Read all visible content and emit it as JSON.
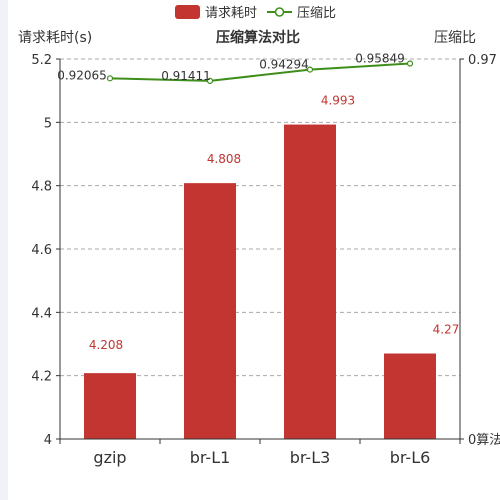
{
  "chart_data": {
    "type": "bar",
    "title": "压缩算法对比",
    "legend": {
      "position": "top-center",
      "items": [
        "请求耗时",
        "压缩比"
      ]
    },
    "categories": [
      "gzip",
      "br-L1",
      "br-L3",
      "br-L6"
    ],
    "y_left": {
      "label": "请求耗时(s)",
      "ylim": [
        4,
        5.2
      ],
      "ticks": [
        "4",
        "4.2",
        "4.4",
        "4.6",
        "4.8",
        "5",
        "5.2"
      ]
    },
    "y_right": {
      "label": "压缩比",
      "ylim": [
        0,
        0.97
      ],
      "tick_max": "0.97",
      "tick_min": "0",
      "min_label_suffix": "算法"
    },
    "series": [
      {
        "name": "请求耗时",
        "type": "bar",
        "color": "#c23531",
        "values": [
          4.208,
          4.808,
          4.993,
          4.27
        ],
        "labels": [
          "4.208",
          "4.808",
          "4.993",
          "4.27"
        ]
      },
      {
        "name": "压缩比",
        "type": "line",
        "color": "#3e8e1a",
        "values": [
          0.92065,
          0.91411,
          0.94294,
          0.95849
        ],
        "labels": [
          "0.92065",
          "0.91411",
          "0.94294",
          "0.95849"
        ]
      }
    ],
    "grid": "horizontal-dashed"
  }
}
